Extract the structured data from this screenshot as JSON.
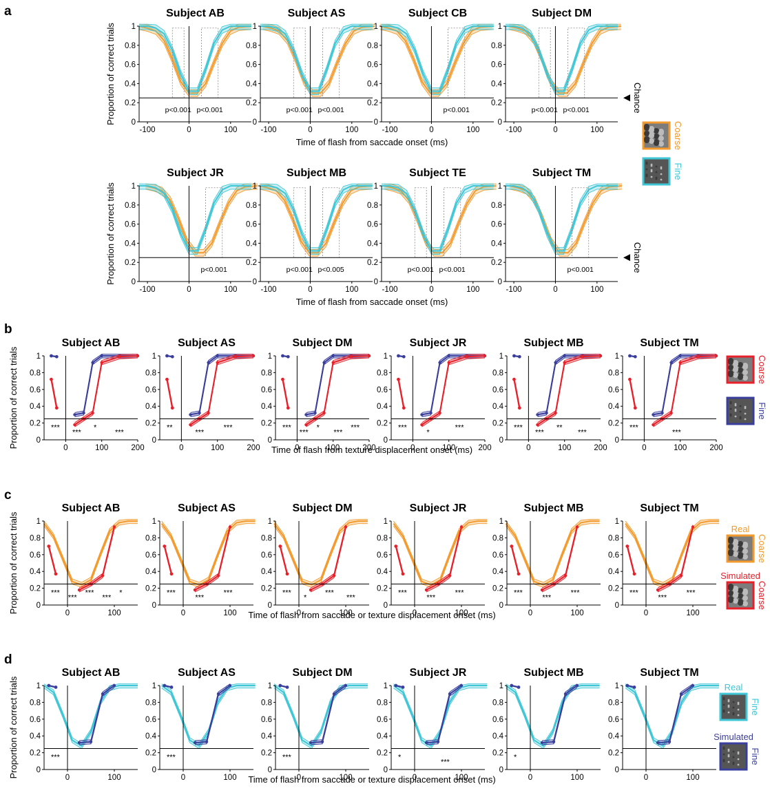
{
  "colors": {
    "coarse": "#f39a2c",
    "fine": "#3ec6d6",
    "sim_coarse": "#e8202a",
    "sim_fine": "#3a3e9c",
    "axis": "#000000",
    "dotted": "#888888"
  },
  "chart_data": [
    {
      "panel": "a",
      "type": "line",
      "ylabel": "Proportion of correct trials",
      "xlabel": "Time of flash from saccade onset (ms)",
      "xlim": [
        -120,
        150
      ],
      "ylim": [
        0,
        1
      ],
      "xticks": [
        -100,
        0,
        100
      ],
      "yticks": [
        0,
        0.2,
        0.4,
        0.6,
        0.8,
        1
      ],
      "chance_label": "Chance",
      "chance_level": 0.25,
      "legend": [
        {
          "label": "Coarse",
          "series": "coarse",
          "icon": "coarse-texture-icon"
        },
        {
          "label": "Fine",
          "series": "fine",
          "icon": "fine-texture-icon"
        }
      ],
      "rows": [
        [
          {
            "title": "Subject AB",
            "annotations": [
              "p<0.001",
              "p<0.001"
            ]
          },
          {
            "title": "Subject AS",
            "annotations": [
              "p<0.001",
              "p<0.001"
            ]
          },
          {
            "title": "Subject CB",
            "annotations": [
              "p<0.001"
            ]
          },
          {
            "title": "Subject DM",
            "annotations": [
              "p<0.001",
              "p<0.001"
            ]
          }
        ],
        [
          {
            "title": "Subject JR",
            "annotations": [
              "p<0.001"
            ]
          },
          {
            "title": "Subject MB",
            "annotations": [
              "p<0.001",
              "p<0.005"
            ]
          },
          {
            "title": "Subject TE",
            "annotations": [
              "p<0.001",
              "p<0.001"
            ]
          },
          {
            "title": "Subject TM",
            "annotations": [
              "p<0.001"
            ]
          }
        ]
      ],
      "x": [
        -120,
        -100,
        -80,
        -60,
        -40,
        -20,
        0,
        20,
        40,
        60,
        80,
        100,
        120,
        150
      ],
      "series": [
        {
          "name": "Coarse",
          "key": "coarse",
          "values": [
            1.0,
            0.98,
            0.95,
            0.85,
            0.65,
            0.42,
            0.3,
            0.3,
            0.4,
            0.62,
            0.82,
            0.95,
            0.99,
            1.0
          ]
        },
        {
          "name": "Fine",
          "key": "fine",
          "values": [
            1.0,
            1.0,
            0.98,
            0.92,
            0.75,
            0.5,
            0.32,
            0.32,
            0.55,
            0.82,
            0.96,
            1.0,
            1.0,
            1.0
          ]
        }
      ]
    },
    {
      "panel": "b",
      "type": "line",
      "ylabel": "Proportion of correct trials",
      "xlabel": "Time of flash from texture displacement onset (ms)",
      "xlim": [
        -60,
        200
      ],
      "ylim": [
        0,
        1
      ],
      "xticks": [
        0,
        100,
        200
      ],
      "yticks": [
        0,
        0.2,
        0.4,
        0.6,
        0.8,
        1
      ],
      "legend": [
        {
          "label": "Coarse",
          "series": "sim_coarse",
          "icon": "coarse-texture-icon"
        },
        {
          "label": "Fine",
          "series": "sim_fine",
          "icon": "fine-texture-icon"
        }
      ],
      "titles": [
        "Subject AB",
        "Subject AS",
        "Subject DM",
        "Subject JR",
        "Subject MB",
        "Subject TM"
      ],
      "stars": [
        [
          "***",
          "***",
          "*",
          "***"
        ],
        [
          "**",
          "***",
          "***"
        ],
        [
          "***",
          "***",
          "*",
          "***",
          "***"
        ],
        [
          "***",
          "*",
          "***"
        ],
        [
          "***",
          "***",
          "**",
          "***"
        ],
        [
          "***",
          "***"
        ]
      ],
      "series": [
        {
          "name": "Fine",
          "key": "sim_fine",
          "pre_x": [
            -40,
            -25
          ],
          "pre_values": [
            1.0,
            0.99
          ],
          "x": [
            25,
            50,
            75,
            100,
            150,
            200
          ],
          "values": [
            0.3,
            0.32,
            0.92,
            1.0,
            1.0,
            1.0
          ]
        },
        {
          "name": "Coarse",
          "key": "sim_coarse",
          "pre_x": [
            -40,
            -25
          ],
          "pre_values": [
            0.72,
            0.38
          ],
          "x": [
            25,
            50,
            75,
            100,
            150,
            200
          ],
          "values": [
            0.18,
            0.25,
            0.32,
            0.92,
            0.99,
            1.0
          ]
        }
      ]
    },
    {
      "panel": "c",
      "type": "line",
      "ylabel": "Proportion of correct trials",
      "xlabel": "Time of flash from saccade or texture displacement onset (ms)",
      "xlim": [
        -50,
        150
      ],
      "ylim": [
        0,
        1
      ],
      "xticks": [
        0,
        100
      ],
      "yticks": [
        0,
        0.2,
        0.4,
        0.6,
        0.8,
        1
      ],
      "legend": [
        {
          "label": "Real",
          "sublabel": "Coarse",
          "series": "coarse",
          "icon": "coarse-texture-icon"
        },
        {
          "label": "Simulated",
          "sublabel": "Coarse",
          "series": "sim_coarse",
          "icon": "coarse-texture-icon"
        }
      ],
      "titles": [
        "Subject AB",
        "Subject AS",
        "Subject DM",
        "Subject JR",
        "Subject MB",
        "Subject TM"
      ],
      "stars": [
        [
          "***",
          "***",
          "***",
          "***",
          "*"
        ],
        [
          "***",
          "***",
          "***"
        ],
        [
          "***",
          "*",
          "***",
          "***"
        ],
        [
          "***",
          "***",
          "***"
        ],
        [
          "***",
          "***",
          "***"
        ],
        [
          "***",
          "***",
          "***"
        ]
      ],
      "series": [
        {
          "name": "Real",
          "key": "coarse",
          "x": [
            -50,
            -30,
            -10,
            10,
            30,
            50,
            70,
            90,
            110,
            130,
            150
          ],
          "values": [
            0.97,
            0.82,
            0.55,
            0.28,
            0.24,
            0.3,
            0.6,
            0.88,
            0.98,
            1.0,
            1.0
          ]
        },
        {
          "name": "Simulated",
          "key": "sim_coarse",
          "pre_x": [
            -40,
            -25
          ],
          "pre_values": [
            0.7,
            0.37
          ],
          "x": [
            25,
            50,
            75,
            100
          ],
          "values": [
            0.18,
            0.25,
            0.35,
            0.93
          ]
        }
      ]
    },
    {
      "panel": "d",
      "type": "line",
      "ylabel": "Proportion of correct trials",
      "xlabel": "Time of flash from saccade or texture displacement onset (ms)",
      "xlim": [
        -50,
        150
      ],
      "ylim": [
        0,
        1
      ],
      "xticks": [
        0,
        100
      ],
      "yticks": [
        0,
        0.2,
        0.4,
        0.6,
        0.8,
        1
      ],
      "legend": [
        {
          "label": "Real",
          "sublabel": "Fine",
          "series": "fine",
          "icon": "fine-texture-icon"
        },
        {
          "label": "Simulated",
          "sublabel": "Fine",
          "series": "sim_fine",
          "icon": "fine-texture-icon"
        }
      ],
      "titles": [
        "Subject AB",
        "Subject AS",
        "Subject DM",
        "Subject JR",
        "Subject MB",
        "Subject TM"
      ],
      "stars": [
        [
          "***"
        ],
        [
          "***"
        ],
        [
          "***"
        ],
        [
          "*",
          "***"
        ],
        [
          "*"
        ],
        []
      ],
      "series": [
        {
          "name": "Real",
          "key": "fine",
          "x": [
            -50,
            -30,
            -10,
            10,
            30,
            50,
            70,
            90,
            110,
            130,
            150
          ],
          "values": [
            1.0,
            0.92,
            0.65,
            0.35,
            0.28,
            0.45,
            0.8,
            0.97,
            1.0,
            1.0,
            1.0
          ]
        },
        {
          "name": "Simulated",
          "key": "sim_fine",
          "pre_x": [
            -40,
            -25
          ],
          "pre_values": [
            1.0,
            0.98
          ],
          "x": [
            25,
            50,
            75,
            100
          ],
          "values": [
            0.32,
            0.33,
            0.9,
            1.0
          ]
        }
      ]
    }
  ],
  "panel_labels": [
    "a",
    "b",
    "c",
    "d"
  ]
}
